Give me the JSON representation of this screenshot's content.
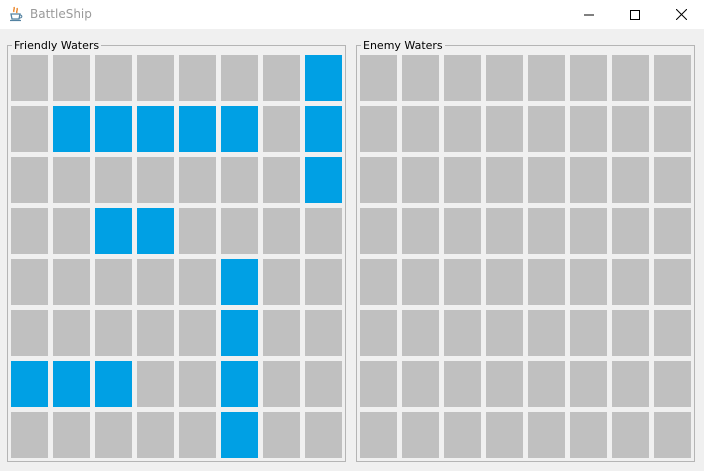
{
  "window": {
    "title": "BattleShip",
    "icon": "java-cup-icon",
    "controls": [
      "minimize-icon",
      "maximize-icon",
      "close-icon"
    ]
  },
  "colors": {
    "empty_cell": "#c0c0c0",
    "ship_cell": "#00a0e4",
    "background": "#f0f0f0",
    "panel_border": "#b5b5b5"
  },
  "friendly": {
    "title": "Friendly Waters",
    "board": [
      [
        0,
        0,
        0,
        0,
        0,
        0,
        0,
        1
      ],
      [
        0,
        1,
        1,
        1,
        1,
        1,
        0,
        1
      ],
      [
        0,
        0,
        0,
        0,
        0,
        0,
        0,
        1
      ],
      [
        0,
        0,
        1,
        1,
        0,
        0,
        0,
        0
      ],
      [
        0,
        0,
        0,
        0,
        0,
        1,
        0,
        0
      ],
      [
        0,
        0,
        0,
        0,
        0,
        1,
        0,
        0
      ],
      [
        1,
        1,
        1,
        0,
        0,
        1,
        0,
        0
      ],
      [
        0,
        0,
        0,
        0,
        0,
        1,
        0,
        0
      ]
    ]
  },
  "enemy": {
    "title": "Enemy Waters",
    "board": [
      [
        0,
        0,
        0,
        0,
        0,
        0,
        0,
        0
      ],
      [
        0,
        0,
        0,
        0,
        0,
        0,
        0,
        0
      ],
      [
        0,
        0,
        0,
        0,
        0,
        0,
        0,
        0
      ],
      [
        0,
        0,
        0,
        0,
        0,
        0,
        0,
        0
      ],
      [
        0,
        0,
        0,
        0,
        0,
        0,
        0,
        0
      ],
      [
        0,
        0,
        0,
        0,
        0,
        0,
        0,
        0
      ],
      [
        0,
        0,
        0,
        0,
        0,
        0,
        0,
        0
      ],
      [
        0,
        0,
        0,
        0,
        0,
        0,
        0,
        0
      ]
    ]
  }
}
